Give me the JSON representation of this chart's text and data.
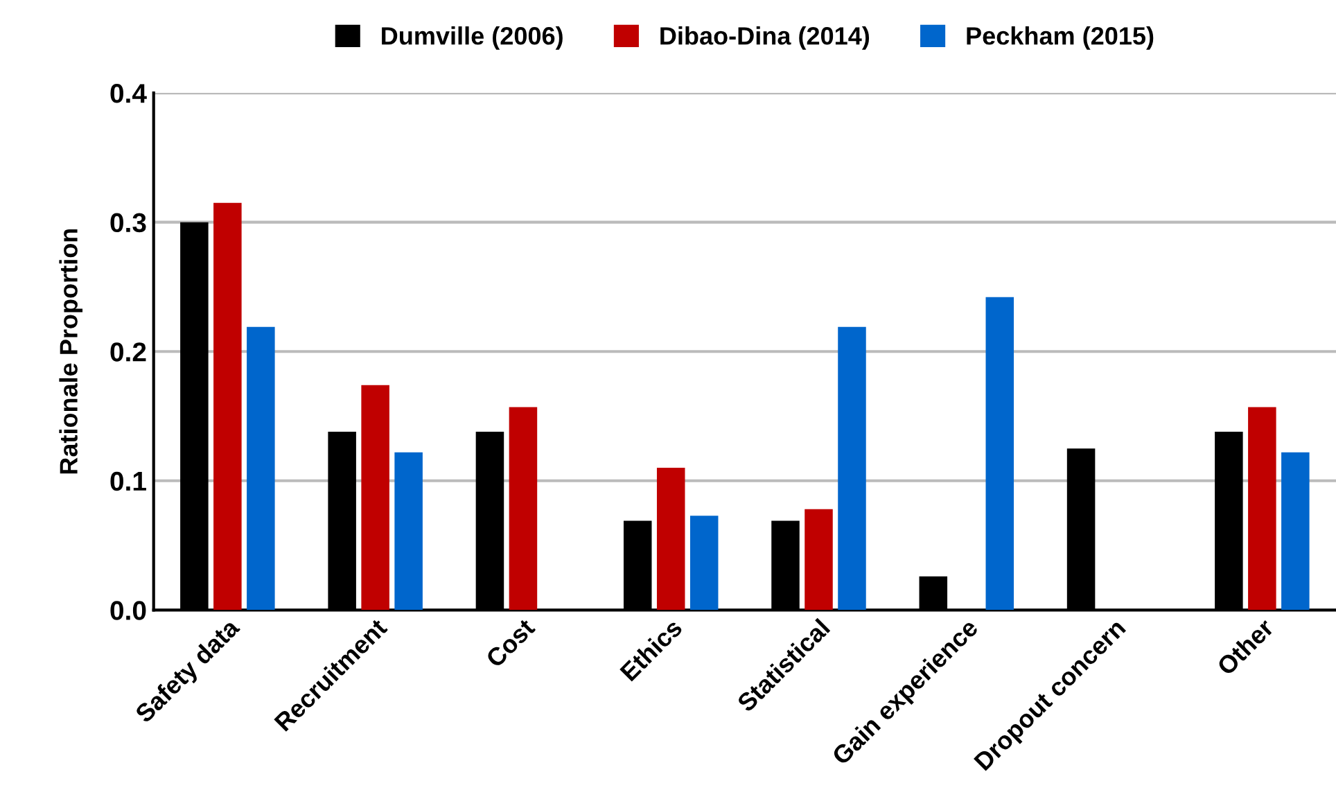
{
  "chart_data": {
    "type": "bar",
    "ylabel": "Rationale Proportion",
    "categories": [
      "Safety data",
      "Recruitment",
      "Cost",
      "Ethics",
      "Statistical",
      "Gain experience",
      "Dropout concern",
      "Other"
    ],
    "series": [
      {
        "name": "Dumville (2006)",
        "color": "#000000",
        "values": [
          0.3,
          0.138,
          0.138,
          0.069,
          0.069,
          0.026,
          0.125,
          0.138
        ]
      },
      {
        "name": "Dibao-Dina (2014)",
        "color": "#c00000",
        "values": [
          0.315,
          0.174,
          0.157,
          0.11,
          0.078,
          null,
          null,
          0.157
        ]
      },
      {
        "name": "Peckham (2015)",
        "color": "#0066cc",
        "values": [
          0.219,
          0.122,
          null,
          0.073,
          0.219,
          0.242,
          null,
          0.122
        ]
      }
    ],
    "ylim": [
      0,
      0.4
    ],
    "yticks": [
      {
        "value": 0,
        "label": "0.0"
      },
      0.1,
      0.2,
      0.3,
      0.4
    ],
    "grid": "y",
    "legend": "top"
  }
}
